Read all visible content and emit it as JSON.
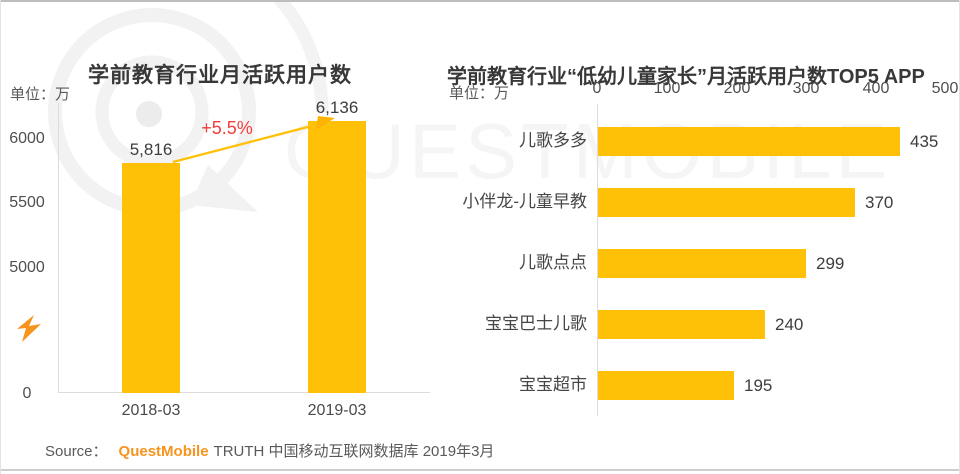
{
  "watermark": {
    "text": "QUESTMOBILE",
    "logo": "questmobile-q-logo"
  },
  "chart_data": [
    {
      "type": "bar",
      "orientation": "vertical",
      "title": "学前教育行业月活跃用户数",
      "unit_label": "单位：万",
      "categories": [
        "2018-03",
        "2019-03"
      ],
      "values": [
        5816,
        6136
      ],
      "value_labels": [
        "5,816",
        "6,136"
      ],
      "annotation": "+5.5%",
      "y_tick_labels": [
        "6000",
        "5500",
        "5000",
        "0"
      ],
      "axis_break": true,
      "grid": false,
      "legend": false
    },
    {
      "type": "bar",
      "orientation": "horizontal",
      "title": "学前教育行业“低幼儿童家长”月活跃用户数TOP5 APP",
      "unit_label": "单位：万",
      "categories": [
        "儿歌多多",
        "小伴龙-儿童早教",
        "儿歌点点",
        "宝宝巴士儿歌",
        "宝宝超市"
      ],
      "values": [
        435,
        370,
        299,
        240,
        195
      ],
      "value_labels": [
        "435",
        "370",
        "299",
        "240",
        "195"
      ],
      "x_tick_labels": [
        "0",
        "100",
        "200",
        "300",
        "400",
        "500"
      ],
      "xlim": [
        0,
        500
      ],
      "tick_position": "top",
      "grid": false,
      "legend": false
    }
  ],
  "source": {
    "prefix": "Source：",
    "brand": "QuestMobile",
    "suffix": "TRUTH 中国移动互联网数据库 2019年3月"
  },
  "colors": {
    "bar_yellow": "#FFC107",
    "brand_orange": "#F7941D",
    "growth_red": "#F53C3C",
    "axis_gray": "#DCDCDC",
    "text_dark": "#3A3A3A",
    "text_gray": "#595959",
    "watermark_gray": "#F3F3F3"
  }
}
